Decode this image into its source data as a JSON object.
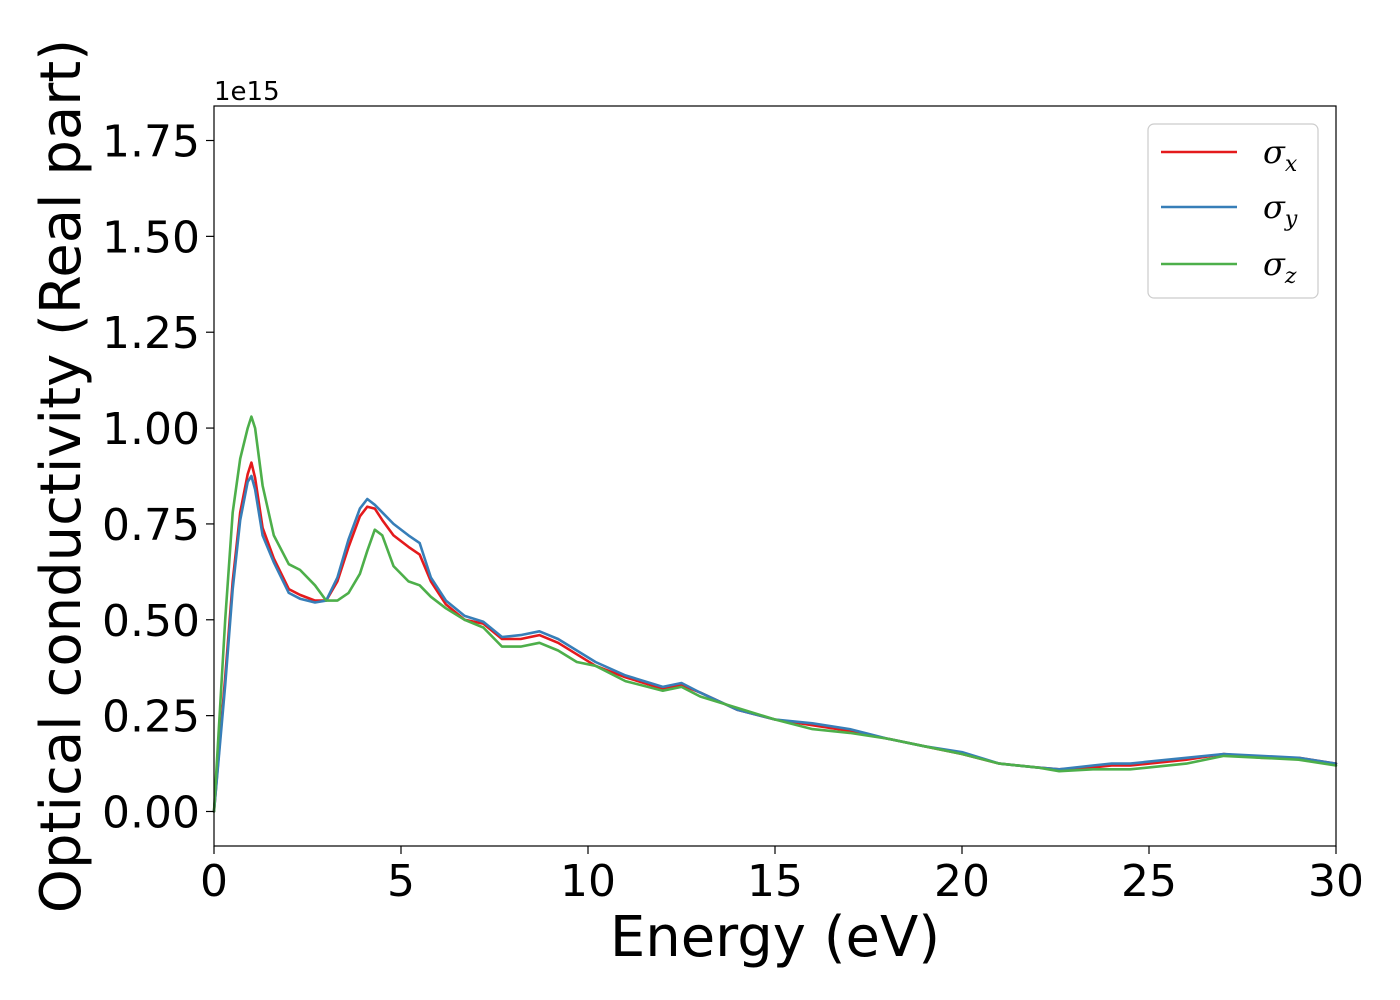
{
  "chart_data": {
    "type": "line",
    "title": "",
    "xlabel": "Energy (eV)",
    "ylabel": "Optical conductivity (Real part)",
    "y_offset_text": "1e15",
    "xlim": [
      0,
      30
    ],
    "ylim": [
      -0.09,
      1.84
    ],
    "x_ticks": [
      0,
      5,
      10,
      15,
      20,
      25,
      30
    ],
    "x_tick_labels": [
      "0",
      "5",
      "10",
      "15",
      "20",
      "25",
      "30"
    ],
    "y_ticks": [
      0.0,
      0.25,
      0.5,
      0.75,
      1.0,
      1.25,
      1.5,
      1.75
    ],
    "y_tick_labels": [
      "0.00",
      "0.25",
      "0.50",
      "0.75",
      "1.00",
      "1.25",
      "1.50",
      "1.75"
    ],
    "grid": false,
    "legend_position": "top-right",
    "x": [
      0,
      0.3,
      0.5,
      0.7,
      0.9,
      1.0,
      1.1,
      1.3,
      1.6,
      2.0,
      2.3,
      2.7,
      3.0,
      3.3,
      3.6,
      3.9,
      4.1,
      4.3,
      4.5,
      4.8,
      5.2,
      5.5,
      5.8,
      6.2,
      6.7,
      7.2,
      7.7,
      8.2,
      8.7,
      9.2,
      9.7,
      10.2,
      11.0,
      12.0,
      12.5,
      13.0,
      14.0,
      15.0,
      16.0,
      17.0,
      18.0,
      19.0,
      20.0,
      21.0,
      22.0,
      22.6,
      23.5,
      24.0,
      24.5,
      25.0,
      26.0,
      27.0,
      28.0,
      29.0,
      30.0
    ],
    "series": [
      {
        "name": "σ_x",
        "color": "#e41a1c",
        "values": [
          0.0,
          0.35,
          0.6,
          0.78,
          0.88,
          0.91,
          0.87,
          0.74,
          0.66,
          0.58,
          0.565,
          0.55,
          0.55,
          0.6,
          0.69,
          0.77,
          0.795,
          0.79,
          0.76,
          0.72,
          0.69,
          0.67,
          0.6,
          0.54,
          0.5,
          0.49,
          0.45,
          0.45,
          0.46,
          0.44,
          0.41,
          0.38,
          0.35,
          0.32,
          0.33,
          0.31,
          0.265,
          0.24,
          0.225,
          0.21,
          0.19,
          0.17,
          0.15,
          0.125,
          0.115,
          0.11,
          0.115,
          0.12,
          0.12,
          0.125,
          0.135,
          0.15,
          0.14,
          0.14,
          0.125
        ]
      },
      {
        "name": "σ_y",
        "color": "#377eb8",
        "values": [
          0.0,
          0.33,
          0.58,
          0.76,
          0.86,
          0.875,
          0.84,
          0.72,
          0.65,
          0.57,
          0.555,
          0.545,
          0.55,
          0.61,
          0.71,
          0.79,
          0.815,
          0.8,
          0.78,
          0.75,
          0.72,
          0.7,
          0.61,
          0.55,
          0.51,
          0.495,
          0.455,
          0.46,
          0.47,
          0.45,
          0.42,
          0.39,
          0.355,
          0.325,
          0.335,
          0.31,
          0.265,
          0.24,
          0.23,
          0.215,
          0.19,
          0.17,
          0.155,
          0.125,
          0.115,
          0.11,
          0.12,
          0.125,
          0.125,
          0.13,
          0.14,
          0.15,
          0.145,
          0.14,
          0.125
        ]
      },
      {
        "name": "σ_z",
        "color": "#4daf4a",
        "values": [
          0.0,
          0.5,
          0.78,
          0.92,
          1.0,
          1.03,
          1.0,
          0.85,
          0.72,
          0.645,
          0.63,
          0.59,
          0.55,
          0.55,
          0.57,
          0.62,
          0.68,
          0.735,
          0.72,
          0.64,
          0.6,
          0.59,
          0.56,
          0.53,
          0.5,
          0.48,
          0.43,
          0.43,
          0.44,
          0.42,
          0.39,
          0.38,
          0.34,
          0.315,
          0.325,
          0.3,
          0.27,
          0.24,
          0.215,
          0.205,
          0.19,
          0.17,
          0.15,
          0.125,
          0.115,
          0.105,
          0.11,
          0.11,
          0.11,
          0.115,
          0.125,
          0.145,
          0.14,
          0.135,
          0.12
        ]
      }
    ]
  }
}
